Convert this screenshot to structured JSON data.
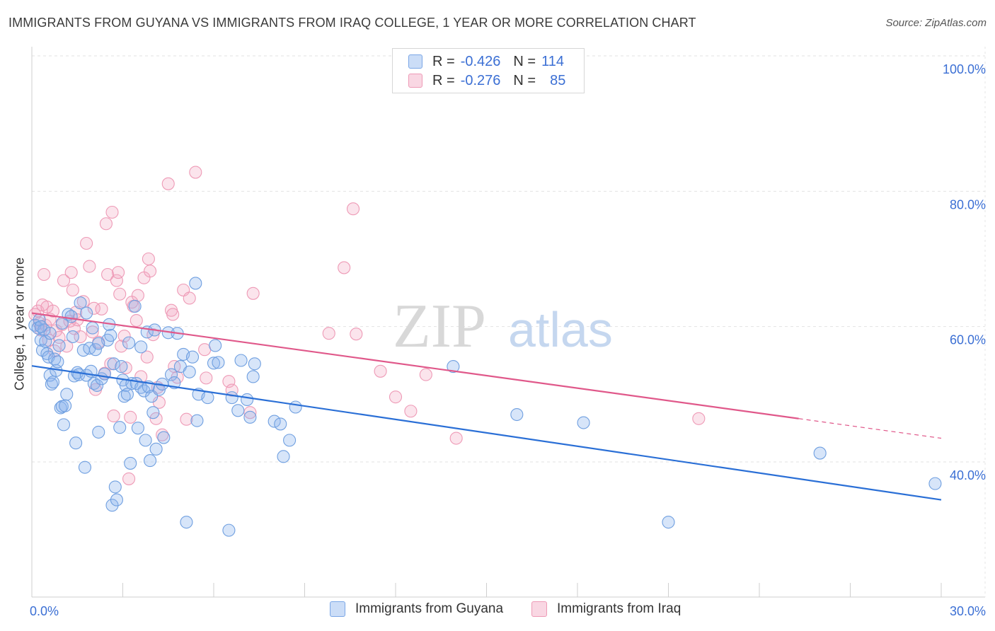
{
  "title": "IMMIGRANTS FROM GUYANA VS IMMIGRANTS FROM IRAQ COLLEGE, 1 YEAR OR MORE CORRELATION CHART",
  "source": "Source: ZipAtlas.com",
  "watermark": {
    "zip": "ZIP",
    "atlas": "atlas"
  },
  "legend": {
    "rows": [
      {
        "r_label": "R =",
        "r_value": "-0.426",
        "n_label": "N =",
        "n_value": "114",
        "color": "#8ab4ee"
      },
      {
        "r_label": "R =",
        "r_value": "-0.276",
        "n_label": "N =",
        "n_value": "85",
        "color": "#f2a7c0"
      }
    ]
  },
  "bottom_legend": [
    {
      "label": "Immigrants from Guyana",
      "color": "#8ab4ee"
    },
    {
      "label": "Immigrants from Iraq",
      "color": "#f2a7c0"
    }
  ],
  "colors": {
    "guyana_fill": "rgba(140,180,238,0.35)",
    "guyana_stroke": "#6f9fe0",
    "guyana_line": "#2a6fd6",
    "iraq_fill": "rgba(242,167,192,0.30)",
    "iraq_stroke": "#ee9ab6",
    "iraq_line": "#e0588a",
    "tick_label": "#3b6fd4",
    "grid": "#e2e2e2"
  },
  "chart_data": {
    "type": "scatter",
    "xlabel": "",
    "ylabel": "College, 1 year or more",
    "xlim": [
      0,
      30
    ],
    "ylim": [
      20,
      102
    ],
    "x_tick_labels": [
      {
        "value": 0,
        "label": "0.0%"
      },
      {
        "value": 30,
        "label": "30.0%"
      }
    ],
    "y_tick_labels": [
      {
        "value": 40,
        "label": "40.0%"
      },
      {
        "value": 60,
        "label": "60.0%"
      },
      {
        "value": 80,
        "label": "80.0%"
      },
      {
        "value": 100,
        "label": "100.0%"
      }
    ],
    "grid": true,
    "legend_position": "top-center",
    "series": [
      {
        "name": "Immigrants from Guyana",
        "trend": {
          "x": [
            0,
            30
          ],
          "y": [
            54.2,
            34.4
          ]
        },
        "points": [
          [
            0.1,
            60.2
          ],
          [
            0.2,
            59.8
          ],
          [
            0.25,
            61.0
          ],
          [
            0.3,
            58.0
          ],
          [
            0.35,
            56.5
          ],
          [
            0.4,
            59.5
          ],
          [
            0.45,
            57.8
          ],
          [
            0.5,
            56.0
          ],
          [
            0.55,
            55.5
          ],
          [
            0.6,
            52.8
          ],
          [
            0.65,
            51.5
          ],
          [
            0.7,
            51.8
          ],
          [
            0.75,
            55.2
          ],
          [
            0.8,
            53.5
          ],
          [
            0.85,
            54.8
          ],
          [
            0.9,
            57.2
          ],
          [
            0.95,
            48.0
          ],
          [
            1.0,
            48.2
          ],
          [
            1.05,
            45.5
          ],
          [
            1.1,
            48.3
          ],
          [
            1.15,
            50.0
          ],
          [
            1.2,
            61.8
          ],
          [
            1.3,
            61.5
          ],
          [
            1.35,
            58.5
          ],
          [
            1.4,
            52.7
          ],
          [
            1.45,
            42.8
          ],
          [
            1.5,
            53.2
          ],
          [
            1.55,
            52.9
          ],
          [
            1.6,
            63.5
          ],
          [
            1.7,
            56.5
          ],
          [
            1.75,
            39.2
          ],
          [
            1.8,
            52.8
          ],
          [
            1.9,
            56.8
          ],
          [
            1.95,
            53.4
          ],
          [
            2.0,
            59.8
          ],
          [
            2.05,
            51.6
          ],
          [
            2.1,
            56.6
          ],
          [
            2.15,
            51.3
          ],
          [
            2.2,
            44.4
          ],
          [
            2.3,
            52.3
          ],
          [
            2.4,
            53.0
          ],
          [
            2.5,
            58.0
          ],
          [
            2.55,
            60.3
          ],
          [
            2.6,
            58.7
          ],
          [
            2.65,
            33.6
          ],
          [
            2.7,
            54.5
          ],
          [
            2.75,
            36.3
          ],
          [
            2.8,
            34.4
          ],
          [
            2.9,
            45.1
          ],
          [
            2.95,
            54.1
          ],
          [
            3.0,
            52.1
          ],
          [
            3.05,
            49.7
          ],
          [
            3.1,
            51.3
          ],
          [
            3.15,
            50.0
          ],
          [
            3.2,
            57.6
          ],
          [
            3.25,
            39.8
          ],
          [
            3.3,
            51.6
          ],
          [
            3.4,
            63.0
          ],
          [
            3.45,
            51.6
          ],
          [
            3.5,
            45.0
          ],
          [
            3.6,
            51.0
          ],
          [
            3.7,
            50.5
          ],
          [
            3.75,
            43.2
          ],
          [
            3.8,
            59.2
          ],
          [
            3.85,
            51.1
          ],
          [
            3.9,
            40.2
          ],
          [
            3.95,
            49.7
          ],
          [
            4.0,
            47.3
          ],
          [
            4.05,
            59.5
          ],
          [
            4.1,
            41.9
          ],
          [
            4.2,
            50.7
          ],
          [
            4.35,
            43.6
          ],
          [
            4.5,
            59.1
          ],
          [
            4.6,
            52.9
          ],
          [
            4.7,
            51.7
          ],
          [
            4.8,
            59.0
          ],
          [
            4.9,
            54.1
          ],
          [
            5.0,
            55.9
          ],
          [
            5.1,
            31.1
          ],
          [
            5.2,
            53.3
          ],
          [
            5.3,
            55.5
          ],
          [
            5.4,
            66.4
          ],
          [
            5.45,
            46.1
          ],
          [
            5.5,
            50.0
          ],
          [
            5.8,
            49.5
          ],
          [
            6.0,
            54.6
          ],
          [
            6.05,
            57.2
          ],
          [
            6.15,
            54.7
          ],
          [
            6.5,
            29.9
          ],
          [
            6.6,
            49.5
          ],
          [
            6.8,
            47.6
          ],
          [
            7.1,
            49.2
          ],
          [
            7.2,
            46.6
          ],
          [
            7.3,
            52.6
          ],
          [
            7.35,
            54.5
          ],
          [
            8.0,
            46.0
          ],
          [
            8.2,
            45.6
          ],
          [
            8.3,
            40.8
          ],
          [
            8.5,
            43.2
          ],
          [
            8.7,
            48.1
          ],
          [
            13.9,
            54.1
          ],
          [
            16.0,
            47.0
          ],
          [
            18.2,
            45.8
          ],
          [
            21.0,
            31.1
          ],
          [
            26.0,
            41.3
          ],
          [
            29.8,
            36.8
          ],
          [
            0.3,
            60.0
          ],
          [
            0.6,
            59.0
          ],
          [
            1.0,
            60.5
          ],
          [
            1.8,
            62.0
          ],
          [
            2.2,
            57.5
          ],
          [
            3.6,
            57.0
          ],
          [
            4.3,
            51.5
          ],
          [
            6.9,
            55.0
          ]
        ]
      },
      {
        "name": "Immigrants from Iraq",
        "trend": {
          "x": [
            0,
            25.3
          ],
          "y": [
            62.0,
            46.4
          ]
        },
        "trend_dashed": {
          "x": [
            25.3,
            30
          ],
          "y": [
            46.4,
            43.5
          ]
        },
        "points": [
          [
            0.1,
            61.8
          ],
          [
            0.2,
            62.3
          ],
          [
            0.25,
            60.5
          ],
          [
            0.3,
            59.5
          ],
          [
            0.35,
            63.2
          ],
          [
            0.4,
            67.7
          ],
          [
            0.45,
            60.2
          ],
          [
            0.5,
            62.9
          ],
          [
            0.6,
            61.1
          ],
          [
            0.7,
            62.3
          ],
          [
            0.75,
            56.4
          ],
          [
            0.8,
            59.4
          ],
          [
            0.9,
            58.4
          ],
          [
            1.0,
            60.3
          ],
          [
            1.05,
            66.8
          ],
          [
            1.15,
            57.1
          ],
          [
            1.25,
            60.8
          ],
          [
            1.3,
            68.0
          ],
          [
            1.35,
            65.4
          ],
          [
            1.4,
            59.7
          ],
          [
            1.45,
            62.1
          ],
          [
            1.5,
            61.0
          ],
          [
            1.6,
            58.5
          ],
          [
            1.7,
            63.7
          ],
          [
            1.8,
            72.3
          ],
          [
            1.9,
            68.9
          ],
          [
            2.0,
            59.2
          ],
          [
            2.05,
            62.7
          ],
          [
            2.1,
            50.7
          ],
          [
            2.2,
            57.7
          ],
          [
            2.3,
            62.6
          ],
          [
            2.4,
            53.1
          ],
          [
            2.45,
            75.2
          ],
          [
            2.5,
            67.7
          ],
          [
            2.6,
            54.5
          ],
          [
            2.65,
            76.9
          ],
          [
            2.7,
            46.8
          ],
          [
            2.8,
            66.8
          ],
          [
            2.85,
            68.0
          ],
          [
            2.9,
            64.8
          ],
          [
            2.95,
            57.1
          ],
          [
            3.05,
            58.6
          ],
          [
            3.1,
            53.9
          ],
          [
            3.2,
            37.5
          ],
          [
            3.25,
            46.6
          ],
          [
            3.3,
            63.6
          ],
          [
            3.35,
            63.0
          ],
          [
            3.45,
            60.9
          ],
          [
            3.5,
            64.6
          ],
          [
            3.6,
            52.6
          ],
          [
            3.7,
            67.2
          ],
          [
            3.8,
            55.5
          ],
          [
            3.85,
            70.0
          ],
          [
            3.9,
            68.2
          ],
          [
            4.0,
            58.8
          ],
          [
            4.1,
            46.4
          ],
          [
            4.15,
            51.0
          ],
          [
            4.2,
            48.8
          ],
          [
            4.3,
            44.0
          ],
          [
            4.5,
            81.1
          ],
          [
            4.6,
            62.4
          ],
          [
            4.65,
            61.8
          ],
          [
            4.7,
            54.1
          ],
          [
            4.8,
            52.5
          ],
          [
            5.0,
            65.4
          ],
          [
            5.1,
            46.3
          ],
          [
            5.2,
            64.2
          ],
          [
            5.4,
            82.8
          ],
          [
            5.7,
            56.6
          ],
          [
            5.75,
            52.4
          ],
          [
            6.5,
            51.9
          ],
          [
            6.6,
            50.6
          ],
          [
            7.2,
            47.3
          ],
          [
            7.3,
            64.9
          ],
          [
            9.8,
            59.0
          ],
          [
            10.3,
            68.7
          ],
          [
            10.6,
            77.4
          ],
          [
            10.7,
            58.9
          ],
          [
            11.5,
            53.4
          ],
          [
            12.0,
            49.6
          ],
          [
            12.5,
            47.5
          ],
          [
            13.0,
            52.9
          ],
          [
            14.0,
            43.5
          ],
          [
            22.0,
            46.4
          ],
          [
            0.55,
            58.0
          ]
        ]
      }
    ]
  }
}
